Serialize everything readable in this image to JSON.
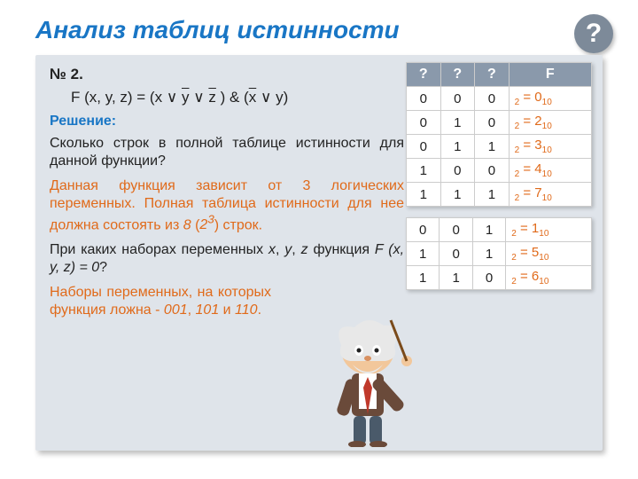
{
  "colors": {
    "accent_blue": "#1976c5",
    "accent_orange": "#e06a1a",
    "panel_bg": "#dfe4ea",
    "table_header_bg": "#8a99ab",
    "badge_bg": "#7d8a99"
  },
  "title": "Анализ таблиц истинности",
  "help_glyph": "?",
  "task_number": "№ 2.",
  "formula_plain": "F (x, y, z) = (x ∨ y ∨ z ) & (x ∨ y)",
  "solution_label": "Решение:",
  "q1": "Сколько строк в полной таблице истинности для данной функции?",
  "a1_html": "Данная функция зависит от 3 логических переменных. Полная таблица истинности для нее должна состоять из <span class='it'>8</span> (<span class='it'>2<sup>3</sup></span>) строк.",
  "q2_html": "При каких наборах переменных <span class='it'>x</span>, <span class='it'>y</span>, <span class='it'>z</span> функция <span class='it'>F (x, y, z) = 0</span>?",
  "a2_html": "Наборы переменных, на которых функция ложна - <span class='it'>001</span>, <span class='it'>101</span> и <span class='it'>110</span>.",
  "table1": {
    "headers": [
      "?",
      "?",
      "?",
      "F"
    ],
    "rows": [
      {
        "c": [
          "0",
          "0",
          "0"
        ],
        "bin": "2",
        "dec": "0"
      },
      {
        "c": [
          "0",
          "1",
          "0"
        ],
        "bin": "2",
        "dec": "2"
      },
      {
        "c": [
          "0",
          "1",
          "1"
        ],
        "bin": "2",
        "dec": "3"
      },
      {
        "c": [
          "1",
          "0",
          "0"
        ],
        "bin": "2",
        "dec": "4"
      },
      {
        "c": [
          "1",
          "1",
          "1"
        ],
        "bin": "2",
        "dec": "7"
      }
    ]
  },
  "table2": {
    "rows": [
      {
        "c": [
          "0",
          "0",
          "1"
        ],
        "bin": "2",
        "dec": "1"
      },
      {
        "c": [
          "1",
          "0",
          "1"
        ],
        "bin": "2",
        "dec": "5"
      },
      {
        "c": [
          "1",
          "1",
          "0"
        ],
        "bin": "2",
        "dec": "6"
      }
    ]
  }
}
